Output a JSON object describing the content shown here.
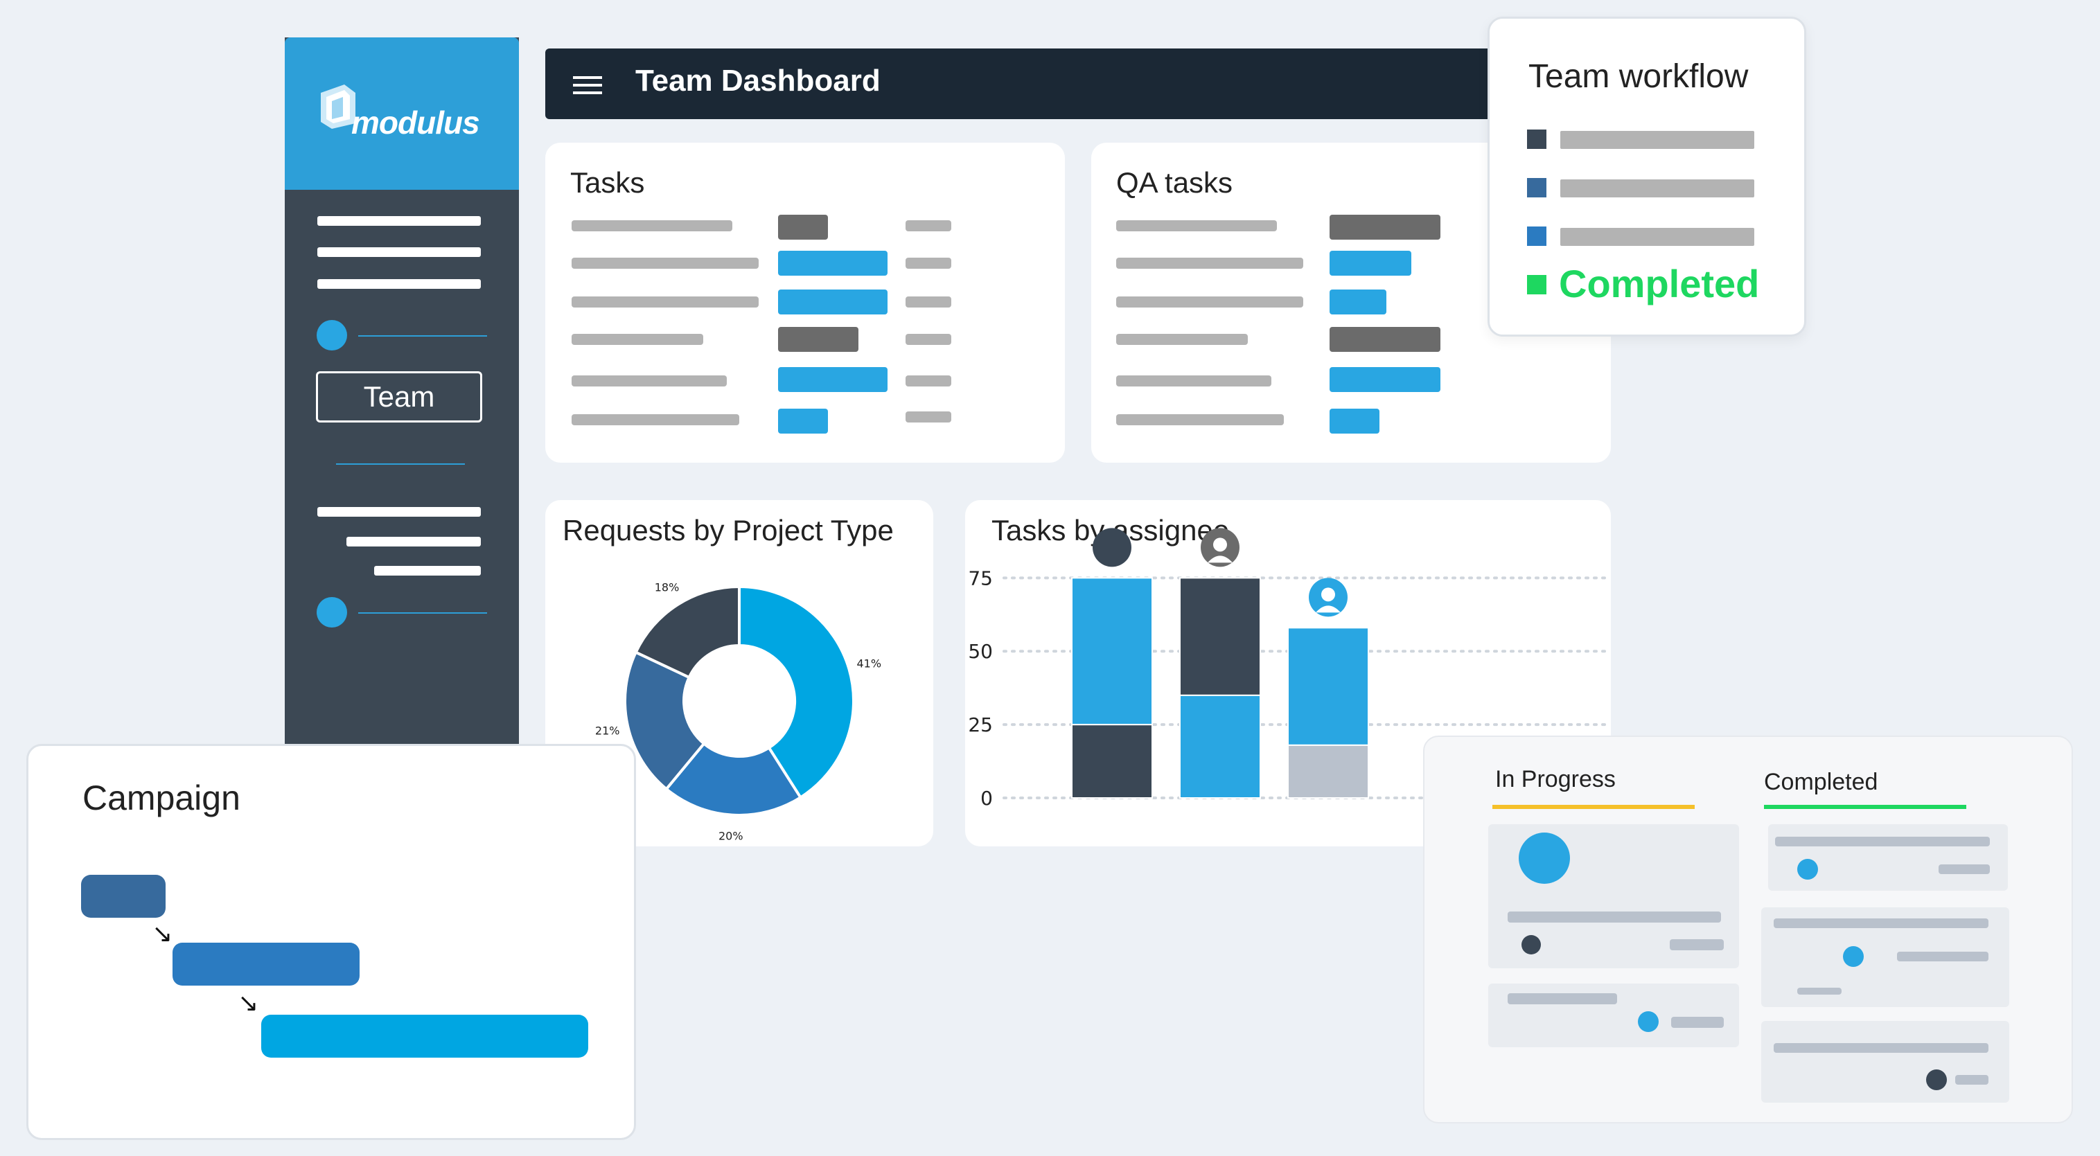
{
  "colors": {
    "background": "#edf1f6",
    "sidebar_dark": "#3c4854",
    "sidebar_brand": "#2d9fd8",
    "header": "#1b2835",
    "accent_blue": "#29a6e2",
    "completed_green": "#1ed760",
    "in_progress_yellow": "#f5c02a"
  },
  "sidebar": {
    "brand_name": "modulus",
    "brand_icon": "modulus-logo-icon",
    "team_button_label": "Team"
  },
  "header": {
    "menu_icon": "hamburger-menu-icon",
    "title": "Team Dashboard"
  },
  "tasks_card": {
    "title": "Tasks"
  },
  "qa_card": {
    "title": "QA tasks"
  },
  "workflow_card": {
    "title": "Team workflow",
    "completed_label": "Completed"
  },
  "donut_card": {
    "title": "Requests by Project Type"
  },
  "assignee_card": {
    "title": "Tasks by assignee",
    "avatar_icon": "user-avatar-icon"
  },
  "campaign_card": {
    "title": "Campaign",
    "arrow_icon": "arrow-down-right-icon"
  },
  "kanban_card": {
    "col_in_progress": "In Progress",
    "col_completed": "Completed"
  },
  "chart_data": [
    {
      "type": "pie",
      "title": "Requests by Project Type",
      "donut": true,
      "slices": [
        {
          "label": "41%",
          "value": 41,
          "color": "#00a6e2"
        },
        {
          "label": "20%",
          "value": 20,
          "color": "#2b7bc1"
        },
        {
          "label": "21%",
          "value": 21,
          "color": "#376a9d"
        },
        {
          "label": "18%",
          "value": 18,
          "color": "#3a4755"
        }
      ]
    },
    {
      "type": "bar",
      "stacked": true,
      "title": "Tasks by assignee",
      "y_ticks": [
        "0",
        "25",
        "50",
        "75"
      ],
      "ylim": [
        0,
        85
      ],
      "grid": true,
      "columns": [
        {
          "segments": [
            {
              "value": 25,
              "color": "#3a4755"
            },
            {
              "value": 50,
              "color": "#29a6e2"
            }
          ],
          "avatar_color": "#3a4755"
        },
        {
          "segments": [
            {
              "value": 35,
              "color": "#29a6e2"
            },
            {
              "value": 40,
              "color": "#3a4755"
            }
          ],
          "avatar_color": "#6b6b6b"
        },
        {
          "segments": [
            {
              "value": 18,
              "color": "#b9c1cc"
            },
            {
              "value": 40,
              "color": "#29a6e2"
            }
          ],
          "avatar_color": "#29a6e2"
        }
      ]
    }
  ]
}
